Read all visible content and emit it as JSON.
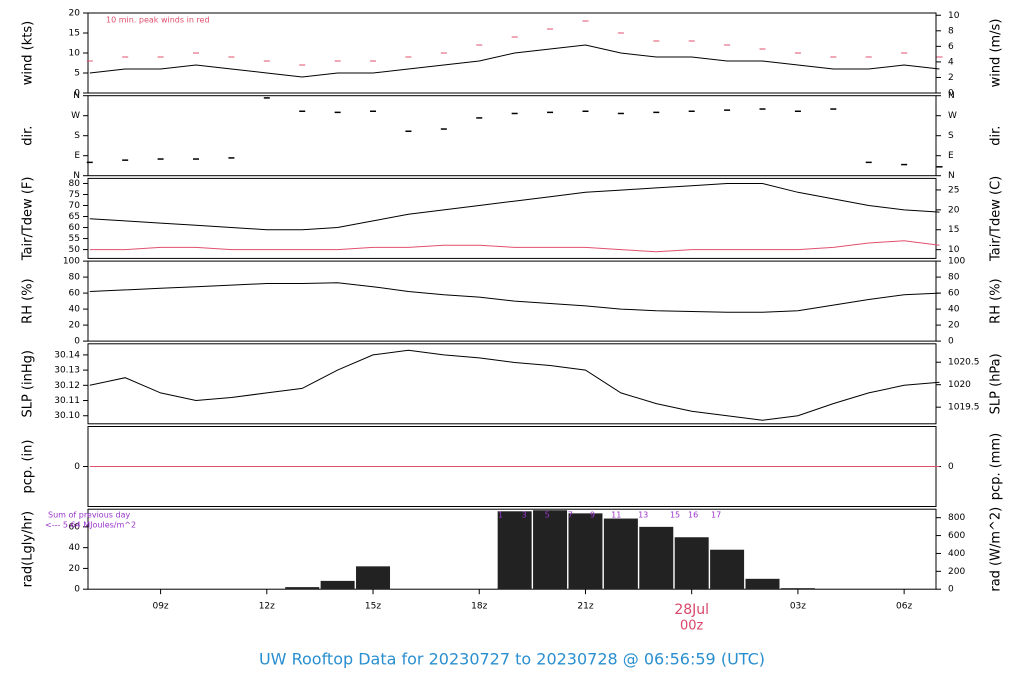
{
  "title": "UW Rooftop Data for 20230727  to  20230728 @ 06:56:59  (UTC)",
  "chart_data": [
    {
      "type": "line",
      "ylabel": "wind (kts)",
      "y2label": "wind (m/s)",
      "annotation": "10 min. peak winds in red",
      "annotation_color": "#e0506e",
      "x": [
        7,
        8,
        9,
        10,
        11,
        12,
        13,
        14,
        15,
        16,
        17,
        18,
        19,
        20,
        21,
        22,
        23,
        24,
        25,
        26,
        27,
        28,
        29,
        30,
        31
      ],
      "xlim": [
        6.95,
        30.9
      ],
      "ylim": [
        0,
        20
      ],
      "yticks": [
        0,
        5,
        10,
        15,
        20
      ],
      "y2lim": [
        0,
        10.29
      ],
      "y2ticks": [
        0,
        2,
        4,
        6,
        8,
        10
      ],
      "series": [
        {
          "name": "wind",
          "color": "#000000",
          "values": [
            5,
            6,
            6,
            7,
            6,
            5,
            4,
            5,
            5,
            6,
            7,
            8,
            10,
            11,
            12,
            10,
            9,
            9,
            8,
            8,
            7,
            6,
            6,
            7,
            6
          ]
        },
        {
          "name": "peak",
          "color": "#e0506e",
          "mark": "dash",
          "values": [
            8,
            9,
            9,
            10,
            9,
            8,
            7,
            8,
            8,
            9,
            10,
            12,
            14,
            16,
            18,
            15,
            13,
            13,
            12,
            11,
            10,
            9,
            9,
            10,
            9
          ]
        }
      ]
    },
    {
      "type": "scatter",
      "ylabel": "dir.",
      "y2label": "dir.",
      "x": [
        7,
        8,
        9,
        10,
        11,
        12,
        13,
        14,
        15,
        16,
        17,
        18,
        19,
        20,
        21,
        22,
        23,
        24,
        25,
        26,
        27,
        28,
        29,
        30,
        31
      ],
      "xlim": [
        6.95,
        30.9
      ],
      "ylim": [
        0,
        360
      ],
      "yticks": [
        {
          "value": 0,
          "label": "N"
        },
        {
          "value": 90,
          "label": "E"
        },
        {
          "value": 180,
          "label": "S"
        },
        {
          "value": 270,
          "label": "W"
        },
        {
          "value": 360,
          "label": "N"
        }
      ],
      "y2lim": [
        0,
        360
      ],
      "y2ticks": [
        {
          "value": 0,
          "label": "N"
        },
        {
          "value": 90,
          "label": "E"
        },
        {
          "value": 180,
          "label": "S"
        },
        {
          "value": 270,
          "label": "W"
        },
        {
          "value": 360,
          "label": "N"
        }
      ],
      "color": "#000000",
      "values": [
        60,
        70,
        75,
        75,
        80,
        350,
        290,
        285,
        290,
        200,
        210,
        260,
        280,
        285,
        290,
        280,
        285,
        290,
        295,
        300,
        290,
        300,
        60,
        50,
        40
      ]
    },
    {
      "type": "line",
      "ylabel": "Tair/Tdew (F)",
      "y2label": "Tair/Tdew (C)",
      "x": [
        7,
        8,
        9,
        10,
        11,
        12,
        13,
        14,
        15,
        16,
        17,
        18,
        19,
        20,
        21,
        22,
        23,
        24,
        25,
        26,
        27,
        28,
        29,
        30,
        31
      ],
      "xlim": [
        6.95,
        30.9
      ],
      "ylim": [
        46,
        82.3
      ],
      "yticks": [
        50,
        55,
        60,
        65,
        70,
        75,
        80
      ],
      "y2lim": [
        7.8,
        27.9
      ],
      "y2ticks": [
        10,
        15,
        20,
        25
      ],
      "series": [
        {
          "name": "Tair",
          "color": "#000000",
          "values": [
            64,
            63,
            62,
            61,
            60,
            59,
            59,
            60,
            63,
            66,
            68,
            70,
            72,
            74,
            76,
            77,
            78,
            79,
            80,
            80,
            76,
            73,
            70,
            68,
            67
          ]
        },
        {
          "name": "Tdew",
          "color": "#e0506e",
          "values": [
            50,
            50,
            51,
            51,
            50,
            50,
            50,
            50,
            51,
            51,
            52,
            52,
            51,
            51,
            51,
            50,
            49,
            50,
            50,
            50,
            50,
            51,
            53,
            54,
            52
          ]
        }
      ]
    },
    {
      "type": "line",
      "ylabel": "RH (%)",
      "y2label": "RH (%)",
      "x": [
        7,
        8,
        9,
        10,
        11,
        12,
        13,
        14,
        15,
        16,
        17,
        18,
        19,
        20,
        21,
        22,
        23,
        24,
        25,
        26,
        27,
        28,
        29,
        30,
        31
      ],
      "xlim": [
        6.95,
        30.9
      ],
      "ylim": [
        0,
        100
      ],
      "yticks": [
        0,
        20,
        40,
        60,
        80,
        100
      ],
      "y2lim": [
        0,
        100
      ],
      "y2ticks": [
        0,
        20,
        40,
        60,
        80,
        100
      ],
      "series": [
        {
          "name": "RH",
          "color": "#000000",
          "values": [
            62,
            64,
            66,
            68,
            70,
            72,
            72,
            73,
            68,
            62,
            58,
            55,
            50,
            47,
            44,
            40,
            38,
            37,
            36,
            36,
            38,
            45,
            52,
            58,
            60
          ]
        }
      ]
    },
    {
      "type": "line",
      "ylabel": "SLP (inHg)",
      "y2label": "SLP (hPa)",
      "x": [
        7,
        8,
        9,
        10,
        11,
        12,
        13,
        14,
        15,
        16,
        17,
        18,
        19,
        20,
        21,
        22,
        23,
        24,
        25,
        26,
        27,
        28,
        29,
        30,
        31
      ],
      "xlim": [
        6.95,
        30.9
      ],
      "ylim": [
        30.0947,
        30.1473
      ],
      "yticks": [
        {
          "value": 30.1,
          "label": "30.10"
        },
        30.11,
        30.12,
        30.13,
        30.14
      ],
      "y2lim": [
        1019.13,
        1020.91
      ],
      "y2ticks": [
        1019.5,
        {
          "value": 1020,
          "label": "1020"
        },
        1020.5
      ],
      "series": [
        {
          "name": "SLP",
          "color": "#000000",
          "values": [
            30.12,
            30.125,
            30.115,
            30.11,
            30.112,
            30.115,
            30.118,
            30.13,
            30.14,
            30.143,
            30.14,
            30.138,
            30.135,
            30.133,
            30.13,
            30.115,
            30.108,
            30.103,
            30.1,
            30.097,
            30.1,
            30.108,
            30.115,
            30.12,
            30.122
          ]
        }
      ]
    },
    {
      "type": "line",
      "ylabel": "pcp. (in)",
      "y2label": "pcp. (mm)",
      "x": [
        7,
        8,
        9,
        10,
        11,
        12,
        13,
        14,
        15,
        16,
        17,
        18,
        19,
        20,
        21,
        22,
        23,
        24,
        25,
        26,
        27,
        28,
        29,
        30,
        31
      ],
      "xlim": [
        6.95,
        30.9
      ],
      "ylim": [
        -1,
        1
      ],
      "yticks": [
        0
      ],
      "y2lim": [
        -1,
        1
      ],
      "y2ticks": [
        0
      ],
      "series": [
        {
          "name": "pcp",
          "color": "#e0506e",
          "values": [
            0,
            0,
            0,
            0,
            0,
            0,
            0,
            0,
            0,
            0,
            0,
            0,
            0,
            0,
            0,
            0,
            0,
            0,
            0,
            0,
            0,
            0,
            0,
            0,
            0
          ]
        }
      ]
    },
    {
      "type": "bar",
      "ylabel": "rad(Lgly/hr)",
      "y2label": "rad (W/m^2)",
      "annotations": [
        "Sum of previous day",
        "<--- 5.64 MJoules/m^2"
      ],
      "annotation_color": "#9933cc",
      "hour_labels": {
        "x": [
          18.6,
          19.27,
          19.92,
          20.57,
          21.2,
          21.87,
          22.63,
          23.53,
          24.04,
          24.69
        ],
        "labels": [
          "1",
          "3",
          "5",
          "7",
          "9",
          "11",
          "13",
          "15",
          "16",
          "17"
        ]
      },
      "x": [
        7,
        8,
        9,
        10,
        11,
        12,
        13,
        14,
        15,
        16,
        17,
        18,
        19,
        20,
        21,
        22,
        23,
        24,
        25,
        26,
        27,
        28,
        29,
        30,
        31
      ],
      "xlim": [
        6.95,
        30.9
      ],
      "ylim": [
        0,
        77
      ],
      "yticks": [
        0,
        20,
        40,
        60
      ],
      "y2lim": [
        0,
        895
      ],
      "y2ticks": [
        0,
        200,
        400,
        600,
        800
      ],
      "color": "#222222",
      "values": [
        0,
        0,
        0,
        0,
        0,
        0,
        2,
        8,
        22,
        0,
        0,
        0,
        75,
        76,
        73,
        68,
        60,
        50,
        38,
        10,
        1,
        0,
        0,
        0,
        0
      ],
      "xticks": [
        {
          "value": 9,
          "label": "09z"
        },
        {
          "value": 12,
          "label": "12z"
        },
        {
          "value": 15,
          "label": "15z"
        },
        {
          "value": 18,
          "label": "18z"
        },
        {
          "value": 21,
          "label": "21z"
        },
        {
          "value": 24,
          "label": "00z"
        },
        {
          "value": 27,
          "label": "03z"
        },
        {
          "value": 30,
          "label": "06z"
        }
      ],
      "date_marker": {
        "value": 24,
        "label": "28Jul",
        "color": "#d9476a"
      }
    }
  ]
}
